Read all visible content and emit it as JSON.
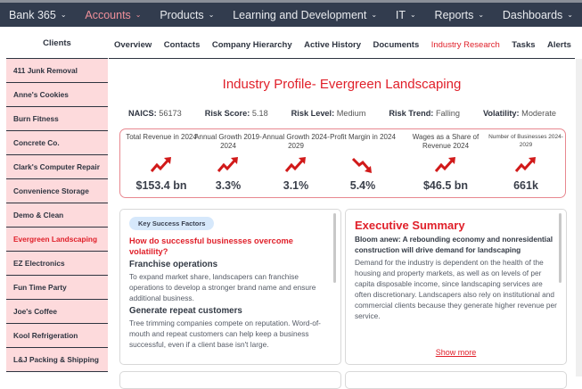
{
  "nav": {
    "items": [
      {
        "label": "Bank 365"
      },
      {
        "label": "Accounts",
        "active": true
      },
      {
        "label": "Products"
      },
      {
        "label": "Learning and Development"
      },
      {
        "label": "IT"
      },
      {
        "label": "Reports"
      },
      {
        "label": "Dashboards"
      }
    ],
    "chevron": "chevron-down-icon",
    "colors": {
      "bar": "#323c4e",
      "active": "#f0909a"
    }
  },
  "sidebar": {
    "title": "Clients",
    "items": [
      "411 Junk Removal",
      "Anne's Cookies",
      "Burn Fitness",
      "Concrete Co.",
      "Clark's Computer Repair",
      "Convenience Storage",
      "Demo & Clean",
      "Evergreen Landscaping",
      "EZ Electronics",
      "Fun Time Party",
      "Joe's Coffee",
      "Kool Refrigeration",
      "L&J Packing & Shipping"
    ],
    "selected": "Evergreen Landscaping"
  },
  "tabs": [
    "Overview",
    "Contacts",
    "Company Hierarchy",
    "Active History",
    "Documents",
    "Industry Research",
    "Tasks",
    "Alerts"
  ],
  "active_tab": "Industry Research",
  "profile": {
    "title": "Industry Profile- Evergreen Landscaping",
    "stats": [
      {
        "label": "NAICS:",
        "value": "56173"
      },
      {
        "label": "Risk Score:",
        "value": "5.18"
      },
      {
        "label": "Risk Level:",
        "value": "Medium"
      },
      {
        "label": "Risk Trend:",
        "value": "Falling"
      },
      {
        "label": "Volatility:",
        "value": "Moderate"
      }
    ]
  },
  "metrics": [
    {
      "label": "Total Revenue in 2024",
      "trend": "up",
      "value": "$153.4 bn"
    },
    {
      "label": "Annual Growth 2019-2024",
      "trend": "up",
      "value": "3.3%"
    },
    {
      "label": "Annual Growth 2024-2029",
      "trend": "up",
      "value": "3.1%"
    },
    {
      "label": "Profit Margin in 2024",
      "trend": "down",
      "value": "5.4%"
    },
    {
      "label": "Wages as a Share of Revenue 2024",
      "trend": "up",
      "value": "$46.5 bn"
    },
    {
      "label": "Number of Businesses 2024-2029",
      "trend": "up",
      "value": "661k"
    }
  ],
  "ksf": {
    "badge": "Key Success Factors",
    "question": "How do successful businesses overcome volatility?",
    "sections": [
      {
        "heading": "Franchise operations",
        "text": "To expand market share, landscapers can franchise operations to develop a stronger brand name and ensure additional business."
      },
      {
        "heading": "Generate repeat customers",
        "text": "Tree trimming companies compete on reputation. Word-of-mouth and repeat customers can help keep a business successful, even if a client base isn't large."
      }
    ]
  },
  "exec": {
    "title": "Executive Summary",
    "subtitle": "Bloom anew: A rebounding economy and nonresidential construction will drive demand for landscaping",
    "text": "Demand for the industry is dependent on the health of the housing and property markets, as well as on levels of per capita disposable income, since landscaping services are often discretionary. Landscapers also rely on institutional and commercial clients because they generate higher revenue per service.",
    "show_more": "Show more"
  },
  "colors": {
    "accent": "#e0202a",
    "sidebar_bg": "#fddadc",
    "trend": "#d11a1a"
  }
}
